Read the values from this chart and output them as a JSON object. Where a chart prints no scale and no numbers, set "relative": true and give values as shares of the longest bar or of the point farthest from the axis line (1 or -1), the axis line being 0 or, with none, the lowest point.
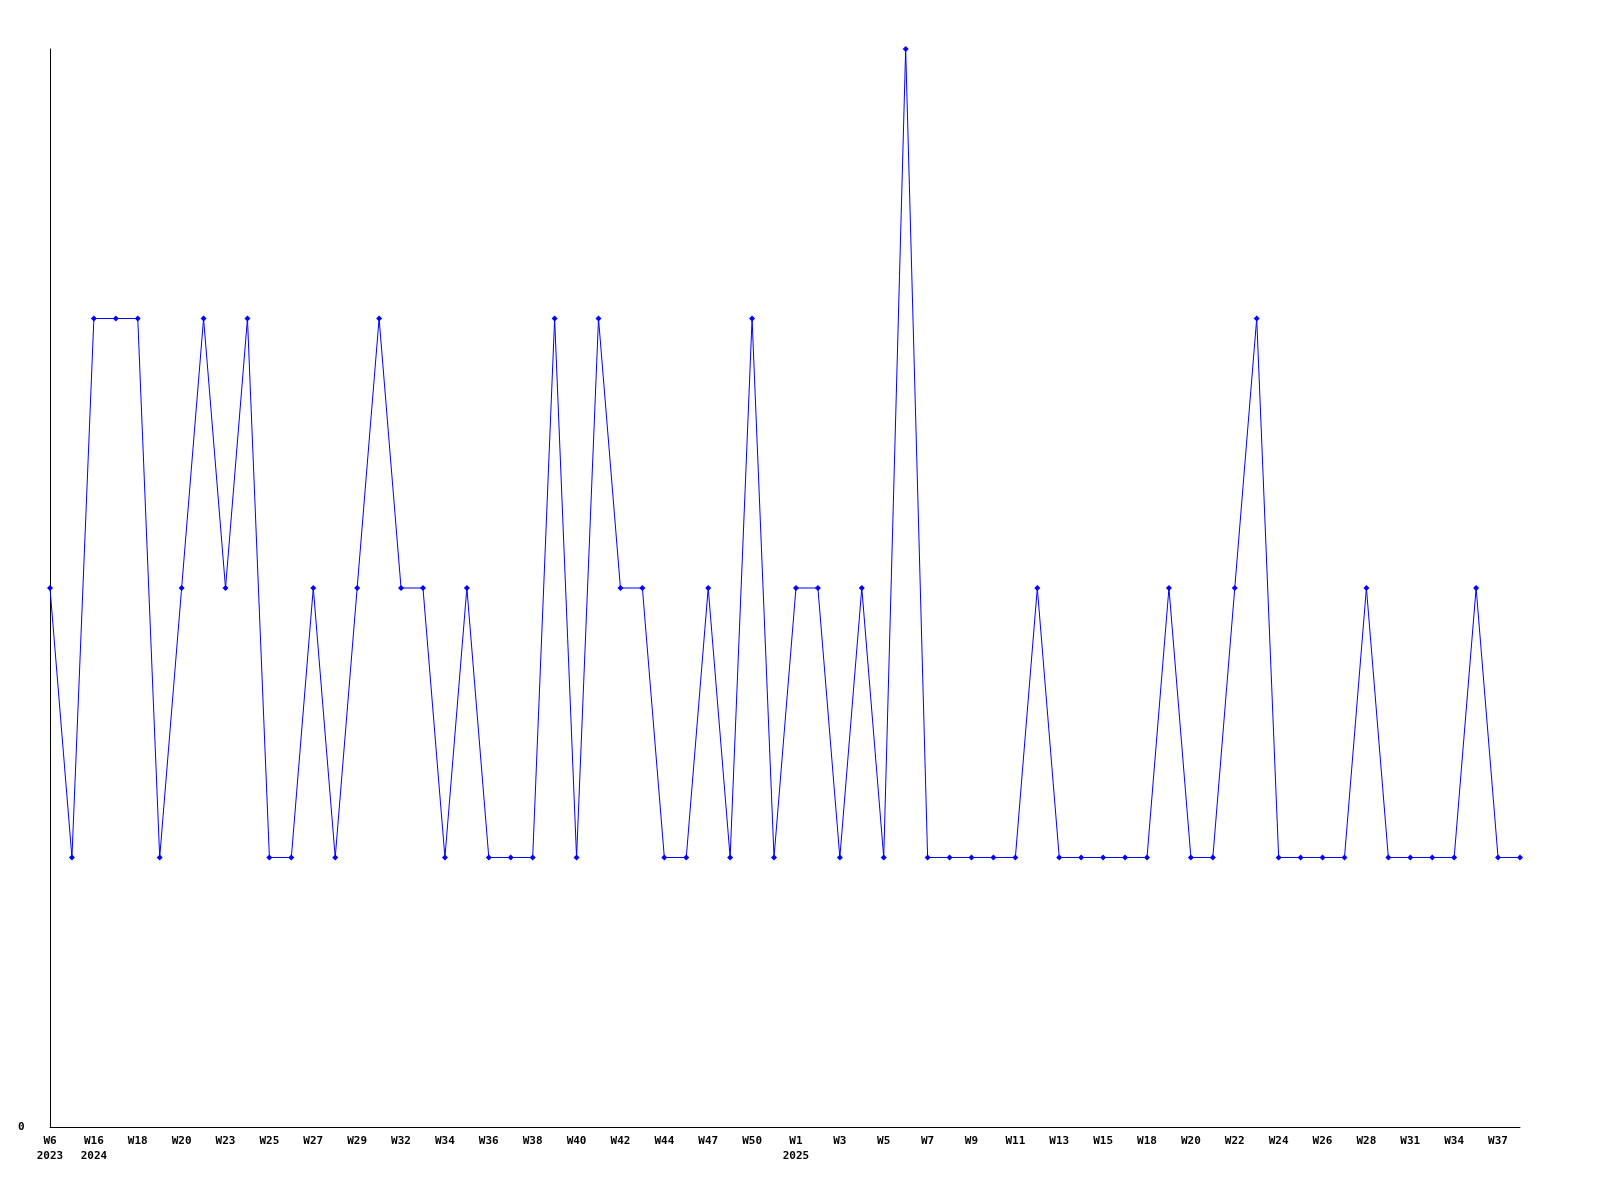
{
  "chart_data": {
    "type": "line",
    "relative": true,
    "marker": "diamond",
    "line_style": "solid",
    "grid": false,
    "categories": [
      "W6\n2023",
      null,
      "W16\n2024",
      null,
      "W18",
      null,
      "W20",
      null,
      "W23",
      null,
      "W25",
      null,
      "W27",
      null,
      "W29",
      null,
      "W32",
      null,
      "W34",
      null,
      "W36",
      null,
      "W38",
      null,
      "W40",
      null,
      "W42",
      null,
      "W44",
      null,
      "W47",
      null,
      "W50",
      null,
      "W1\n2025",
      null,
      "W3",
      null,
      "W5",
      null,
      "W7",
      null,
      "W9",
      null,
      "W11",
      null,
      "W13",
      null,
      "W15",
      null,
      "W18",
      null,
      "W20",
      null,
      "W22",
      null,
      "W24",
      null,
      "W26",
      null,
      "W28",
      null,
      "W31",
      null,
      "W34",
      null,
      "W37",
      null
    ],
    "series": [
      {
        "color": "#0000ff",
        "values": [
          0.5,
          0.25,
          0.75,
          0.75,
          0.75,
          0.25,
          0.5,
          0.75,
          0.5,
          0.75,
          0.25,
          0.25,
          0.5,
          0.25,
          0.5,
          0.75,
          0.5,
          0.5,
          0.25,
          0.5,
          0.25,
          0.25,
          0.25,
          0.75,
          0.25,
          0.75,
          0.5,
          0.5,
          0.25,
          0.25,
          0.5,
          0.25,
          0.75,
          0.25,
          0.5,
          0.5,
          0.25,
          0.5,
          0.25,
          1,
          0.25,
          0.25,
          0.25,
          0.25,
          0.25,
          0.5,
          0.25,
          0.25,
          0.25,
          0.25,
          0.25,
          0.5,
          0.25,
          0.25,
          0.5,
          0.75,
          0.25,
          0.25,
          0.25,
          0.25,
          0.5,
          0.25,
          0.25,
          0.25,
          0.25,
          0.5,
          0.25,
          0.25
        ]
      }
    ],
    "annotations": [
      "0"
    ]
  }
}
